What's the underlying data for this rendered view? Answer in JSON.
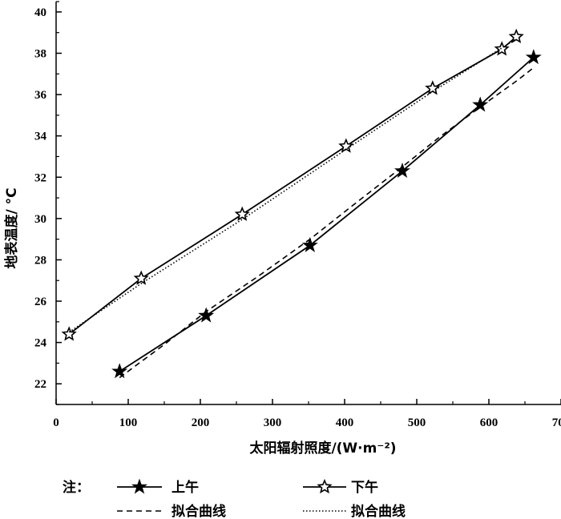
{
  "chart_data": {
    "type": "line",
    "xlabel": "太阳辐射照度/(W·m⁻²)",
    "ylabel": "地表温度/ °C",
    "xlim": [
      0,
      700
    ],
    "ylim": [
      21,
      40.5
    ],
    "xticks": [
      0,
      100,
      200,
      300,
      400,
      500,
      600,
      700
    ],
    "yticks": [
      22,
      24,
      26,
      28,
      30,
      32,
      34,
      36,
      38,
      40
    ],
    "grid": false,
    "legend_position": "bottom",
    "legend_note": "注：",
    "series": [
      {
        "name": "上午",
        "marker": "filled-star",
        "line_style": "solid",
        "x": [
          88,
          208,
          352,
          480,
          588,
          662
        ],
        "y": [
          22.6,
          25.3,
          28.7,
          32.3,
          35.5,
          37.8
        ]
      },
      {
        "name": "下午",
        "marker": "hollow-star",
        "line_style": "solid",
        "x": [
          18,
          118,
          258,
          402,
          522,
          618,
          638
        ],
        "y": [
          24.4,
          27.1,
          30.2,
          33.5,
          36.3,
          38.2,
          38.8
        ]
      },
      {
        "name": "拟合曲线",
        "fit_of": "上午",
        "line_style": "dashed",
        "x": [
          88,
          150,
          208,
          280,
          352,
          410,
          480,
          530,
          588,
          640,
          662
        ],
        "y": [
          22.3,
          23.9,
          25.5,
          27.2,
          29.0,
          30.6,
          32.5,
          33.9,
          35.4,
          36.7,
          37.3
        ]
      },
      {
        "name": "拟合曲线",
        "fit_of": "下午",
        "line_style": "dotted",
        "x": [
          18,
          120,
          260,
          400,
          520,
          620,
          638
        ],
        "y": [
          24.5,
          26.9,
          30.0,
          33.3,
          36.1,
          38.3,
          38.7
        ]
      }
    ]
  }
}
